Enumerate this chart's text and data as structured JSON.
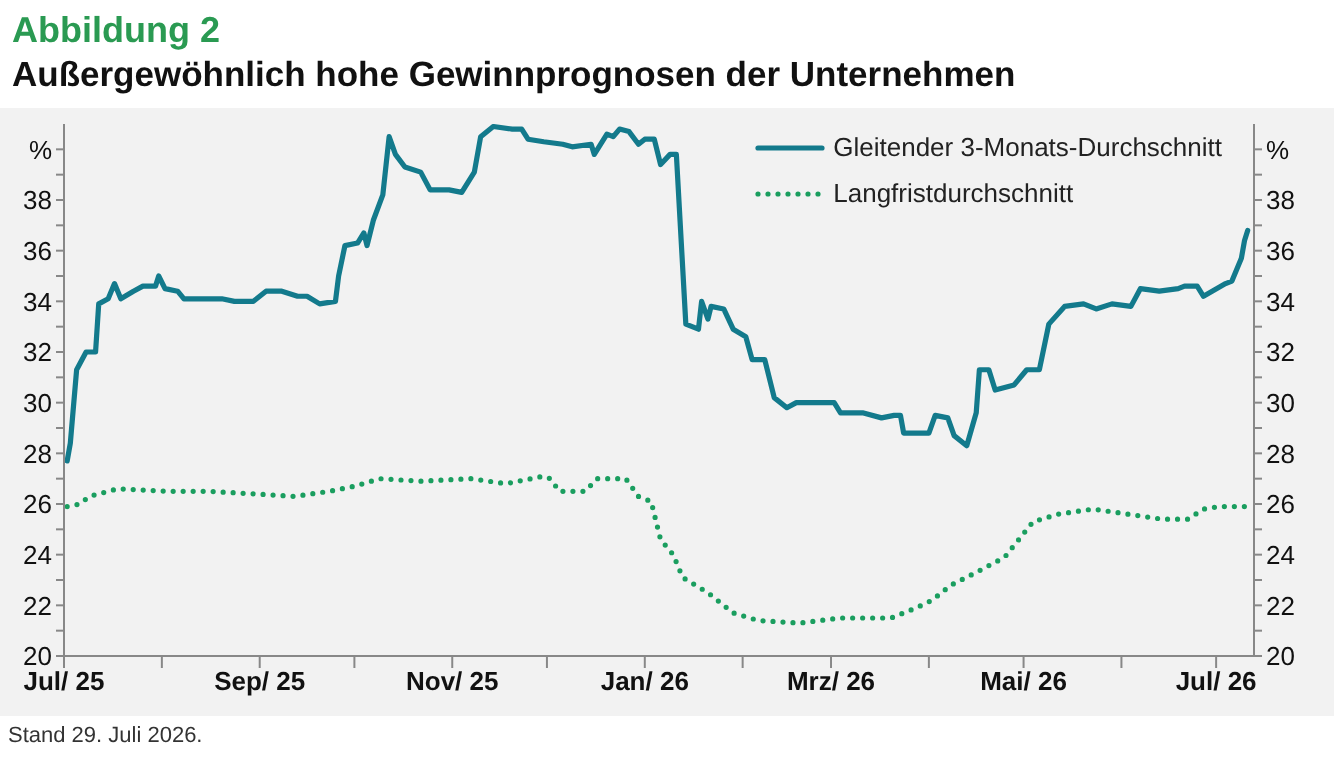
{
  "chart_data": {
    "type": "line",
    "title": "Abbildung 2",
    "subtitle": "Außergewöhnlich hohe Gewinnprognosen der Unternehmen",
    "annotations": [
      "Stand 29. Juli 2026."
    ],
    "legend": "top right",
    "marker": "none",
    "xlim": [
      "2025-07-01",
      "2026-07-13"
    ],
    "xticks": [
      {
        "value": "2025-07-01",
        "label": "Jul/ 25"
      },
      {
        "value": "2025-08-01",
        "label": null
      },
      {
        "value": "2025-09-01",
        "label": "Sep/ 25"
      },
      {
        "value": "2025-10-01",
        "label": null
      },
      {
        "value": "2025-11-01",
        "label": "Nov/ 25"
      },
      {
        "value": "2025-12-01",
        "label": null
      },
      {
        "value": "2026-01-01",
        "label": "Jan/ 26"
      },
      {
        "value": "2026-02-01",
        "label": null
      },
      {
        "value": "2026-03-01",
        "label": "Mrz/ 26"
      },
      {
        "value": "2026-04-01",
        "label": null
      },
      {
        "value": "2026-05-01",
        "label": "Mai/ 26"
      },
      {
        "value": "2026-06-01",
        "label": null
      },
      {
        "value": "2026-07-01",
        "label": "Jul/ 26"
      }
    ],
    "ylim": [
      20,
      41
    ],
    "yticks": [
      20,
      {
        "value": 21,
        "label": null
      },
      22,
      {
        "value": 23,
        "label": null
      },
      24,
      {
        "value": 25,
        "label": null
      },
      26,
      {
        "value": 27,
        "label": null
      },
      28,
      {
        "value": 29,
        "label": null
      },
      30,
      {
        "value": 31,
        "label": null
      },
      32,
      {
        "value": 33,
        "label": null
      },
      34,
      {
        "value": 35,
        "label": null
      },
      36,
      {
        "value": 37,
        "label": null
      },
      38,
      {
        "value": 39,
        "label": null
      },
      {
        "value": 40,
        "label": "%"
      }
    ],
    "y2lim": [
      20,
      41
    ],
    "y2ticks": [
      20,
      {
        "value": 21,
        "label": null
      },
      22,
      {
        "value": 23,
        "label": null
      },
      24,
      {
        "value": 25,
        "label": null
      },
      26,
      {
        "value": 27,
        "label": null
      },
      28,
      {
        "value": 29,
        "label": null
      },
      30,
      {
        "value": 31,
        "label": null
      },
      32,
      {
        "value": 33,
        "label": null
      },
      34,
      {
        "value": 35,
        "label": null
      },
      36,
      {
        "value": 37,
        "label": null
      },
      38,
      {
        "value": 39,
        "label": null
      },
      {
        "value": 40,
        "label": "%"
      }
    ],
    "series": [
      {
        "name": "Gleitender 3-Monats-Durchschnitt",
        "color": "#137a8c",
        "line_style": "solid",
        "x": [
          "2025-07-02",
          "2025-07-03",
          "2025-07-05",
          "2025-07-08",
          "2025-07-11",
          "2025-07-12",
          "2025-07-15",
          "2025-07-17",
          "2025-07-19",
          "2025-07-23",
          "2025-07-26",
          "2025-07-30",
          "2025-07-31",
          "2025-08-02",
          "2025-08-06",
          "2025-08-08",
          "2025-08-14",
          "2025-08-20",
          "2025-08-24",
          "2025-08-30",
          "2025-09-03",
          "2025-09-08",
          "2025-09-13",
          "2025-09-16",
          "2025-09-20",
          "2025-09-25",
          "2025-09-26",
          "2025-09-28",
          "2025-10-02",
          "2025-10-04",
          "2025-10-05",
          "2025-10-07",
          "2025-10-10",
          "2025-10-12",
          "2025-10-14",
          "2025-10-17",
          "2025-10-22",
          "2025-10-25",
          "2025-10-31",
          "2025-11-04",
          "2025-11-08",
          "2025-11-10",
          "2025-11-14",
          "2025-11-20",
          "2025-11-23",
          "2025-11-25",
          "2025-11-30",
          "2025-12-06",
          "2025-12-09",
          "2025-12-15",
          "2025-12-16",
          "2025-12-20",
          "2025-12-22",
          "2025-12-24",
          "2025-12-27",
          "2025-12-30",
          "2026-01-01",
          "2026-01-04",
          "2026-01-06",
          "2026-01-09",
          "2026-01-11",
          "2026-01-14",
          "2026-01-18",
          "2026-01-19",
          "2026-01-21",
          "2026-01-22",
          "2026-01-26",
          "2026-01-29",
          "2026-02-02",
          "2026-02-04",
          "2026-02-08",
          "2026-02-11",
          "2026-02-15",
          "2026-02-18",
          "2026-02-24",
          "2026-03-02",
          "2026-03-04",
          "2026-03-11",
          "2026-03-17",
          "2026-03-21",
          "2026-03-23",
          "2026-03-24",
          "2026-04-01",
          "2026-04-03",
          "2026-04-07",
          "2026-04-09",
          "2026-04-13",
          "2026-04-16",
          "2026-04-17",
          "2026-04-20",
          "2026-04-22",
          "2026-04-28",
          "2026-05-02",
          "2026-05-06",
          "2026-05-09",
          "2026-05-14",
          "2026-05-20",
          "2026-05-24",
          "2026-05-29",
          "2026-06-04",
          "2026-06-07",
          "2026-06-13",
          "2026-06-19",
          "2026-06-21",
          "2026-06-25",
          "2026-06-27",
          "2026-07-04",
          "2026-07-06",
          "2026-07-09",
          "2026-07-10",
          "2026-07-11"
        ],
        "values": [
          27.7,
          28.4,
          31.3,
          32.0,
          32.0,
          33.9,
          34.1,
          34.7,
          34.1,
          34.4,
          34.6,
          34.6,
          35.0,
          34.5,
          34.4,
          34.1,
          34.1,
          34.1,
          34.0,
          34.0,
          34.4,
          34.4,
          34.2,
          34.2,
          33.9,
          34.0,
          35.0,
          36.2,
          36.3,
          36.7,
          36.2,
          37.2,
          38.2,
          40.5,
          39.8,
          39.3,
          39.1,
          38.4,
          38.4,
          38.3,
          39.1,
          40.5,
          40.9,
          40.8,
          40.8,
          40.4,
          40.3,
          40.2,
          40.1,
          40.2,
          39.8,
          40.6,
          40.5,
          40.8,
          40.7,
          40.2,
          40.4,
          40.4,
          39.4,
          39.8,
          39.8,
          33.1,
          32.9,
          34.0,
          33.3,
          33.8,
          33.7,
          32.9,
          32.6,
          31.7,
          31.7,
          30.2,
          29.8,
          30.0,
          30.0,
          30.0,
          29.6,
          29.6,
          29.4,
          29.5,
          29.5,
          28.8,
          28.8,
          29.5,
          29.4,
          28.7,
          28.3,
          29.6,
          31.3,
          31.3,
          30.5,
          30.7,
          31.3,
          31.3,
          33.1,
          33.8,
          33.9,
          33.7,
          33.9,
          33.8,
          34.5,
          34.4,
          34.5,
          34.6,
          34.6,
          34.2,
          34.7,
          34.8,
          35.7,
          36.4,
          36.8
        ]
      },
      {
        "name": "Langfristdurchschnitt",
        "color": "#1a9e5f",
        "line_style": "dotted",
        "x": [
          "2025-07-02",
          "2025-07-06",
          "2025-07-09",
          "2025-07-18",
          "2025-08-03",
          "2025-08-16",
          "2025-08-30",
          "2025-09-12",
          "2025-09-23",
          "2025-10-01",
          "2025-10-09",
          "2025-10-22",
          "2025-11-07",
          "2025-11-18",
          "2025-11-30",
          "2025-12-02",
          "2025-12-05",
          "2025-12-13",
          "2025-12-17",
          "2025-12-26",
          "2025-12-30",
          "2026-01-03",
          "2026-01-06",
          "2026-01-10",
          "2026-01-13",
          "2026-01-21",
          "2026-01-29",
          "2026-02-06",
          "2026-02-19",
          "2026-03-04",
          "2026-03-15",
          "2026-03-20",
          "2026-03-28",
          "2026-04-02",
          "2026-04-08",
          "2026-04-16",
          "2026-04-25",
          "2026-05-04",
          "2026-05-12",
          "2026-05-23",
          "2026-06-03",
          "2026-06-14",
          "2026-06-22",
          "2026-06-27",
          "2026-07-02",
          "2026-07-10"
        ],
        "values": [
          25.9,
          26.0,
          26.3,
          26.6,
          26.5,
          26.5,
          26.4,
          26.3,
          26.5,
          26.7,
          27.0,
          26.9,
          27.0,
          26.8,
          27.1,
          27.0,
          26.5,
          26.5,
          27.0,
          27.0,
          26.3,
          26.1,
          24.6,
          24.0,
          23.1,
          22.5,
          21.7,
          21.4,
          21.3,
          21.5,
          21.5,
          21.5,
          21.9,
          22.2,
          22.8,
          23.3,
          23.9,
          25.3,
          25.6,
          25.8,
          25.6,
          25.4,
          25.4,
          25.8,
          25.9,
          25.9
        ]
      }
    ]
  }
}
